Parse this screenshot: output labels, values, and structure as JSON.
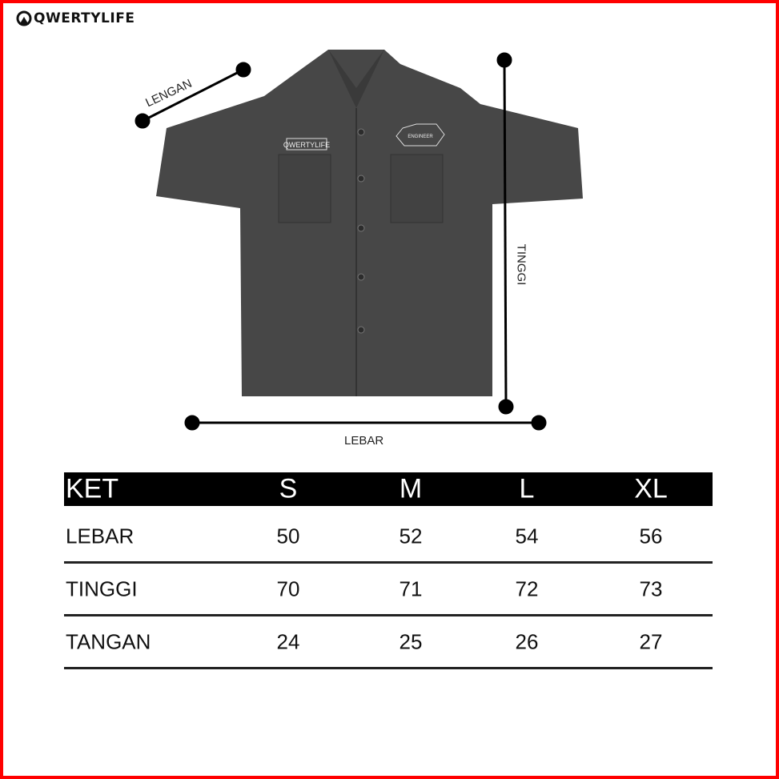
{
  "brand": {
    "logo_text": "QWERTYLIFE",
    "patch_text": "QWERTYLIFE",
    "badge_text": "ENGINEER"
  },
  "dimensions": {
    "sleeve": "LENGAN",
    "height": "TINGGI",
    "width": "LEBAR"
  },
  "table": {
    "headers": [
      "KET",
      "S",
      "M",
      "L",
      "XL"
    ],
    "rows": [
      {
        "label": "LEBAR",
        "values": [
          "50",
          "52",
          "54",
          "56"
        ]
      },
      {
        "label": "TINGGI",
        "values": [
          "70",
          "71",
          "72",
          "73"
        ]
      },
      {
        "label": "TANGAN",
        "values": [
          "24",
          "25",
          "26",
          "27"
        ]
      }
    ]
  },
  "colors": {
    "border": "#ff0000",
    "shirt": "#444444",
    "header_bg": "#000000"
  }
}
